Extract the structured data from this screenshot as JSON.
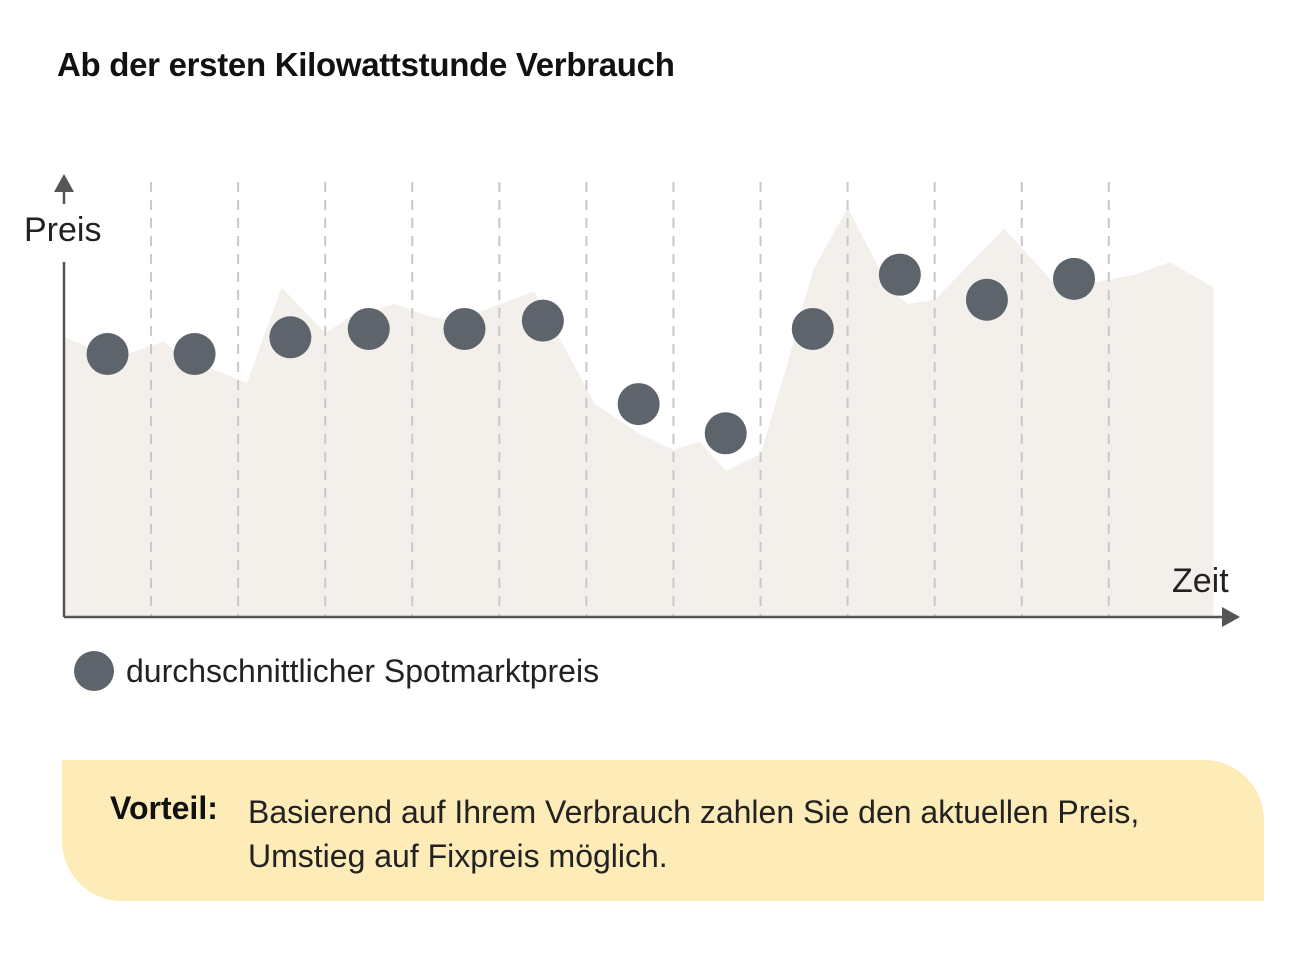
{
  "title": "Ab der ersten Kilowattstunde Verbrauch",
  "colors": {
    "dot": "#5e646b",
    "area": "#f3f0ec",
    "axis": "#555555",
    "grid": "#c8c8c8",
    "callout_bg": "#fdebb8"
  },
  "chart_data": {
    "type": "scatter",
    "xlabel": "Zeit",
    "ylabel": "Preis",
    "grid": "vertical dashed",
    "background_area": {
      "type": "area",
      "x": [
        0,
        0.6,
        1.0,
        1.15,
        1.3,
        2.1,
        2.5,
        3.0,
        3.3,
        3.8,
        4.2,
        4.5,
        5.4,
        6.1,
        6.6,
        7.0,
        7.3,
        7.6,
        8.0,
        8.3,
        8.6,
        9.0,
        9.5,
        9.7,
        10.0,
        10.8,
        11.5,
        11.8,
        12.3,
        12.7,
        13.2
      ],
      "y": [
        6.7,
        6.2,
        6.5,
        6.6,
        6.3,
        5.6,
        7.9,
        6.8,
        7.2,
        7.5,
        7.2,
        7.1,
        7.8,
        5.1,
        4.4,
        4.0,
        4.2,
        3.5,
        3.9,
        6.0,
        8.3,
        9.8,
        7.8,
        7.5,
        7.6,
        9.3,
        7.7,
        8.0,
        8.2,
        8.5,
        7.9
      ]
    },
    "series": [
      {
        "name": "durchschnittlicher Spotmarktpreis",
        "x": [
          0.5,
          1.5,
          2.6,
          3.5,
          4.6,
          5.5,
          6.6,
          7.6,
          8.6,
          9.6,
          10.6,
          11.6
        ],
        "y": [
          6.3,
          6.3,
          6.7,
          6.9,
          6.9,
          7.1,
          5.1,
          4.4,
          6.9,
          8.2,
          7.6,
          8.1
        ]
      }
    ],
    "xlim": [
      0,
      13.3
    ],
    "ylim": [
      0,
      10.3
    ],
    "vertical_gridlines_at": [
      1,
      2,
      3,
      4,
      5,
      6,
      7,
      8,
      9,
      10,
      11,
      12
    ]
  },
  "legend": {
    "label": "durchschnittlicher Spotmarktpreis"
  },
  "callout": {
    "label": "Vorteil:",
    "text": "Basierend auf Ihrem Verbrauch zahlen Sie den aktuellen Preis, Umstieg auf Fixpreis möglich."
  }
}
